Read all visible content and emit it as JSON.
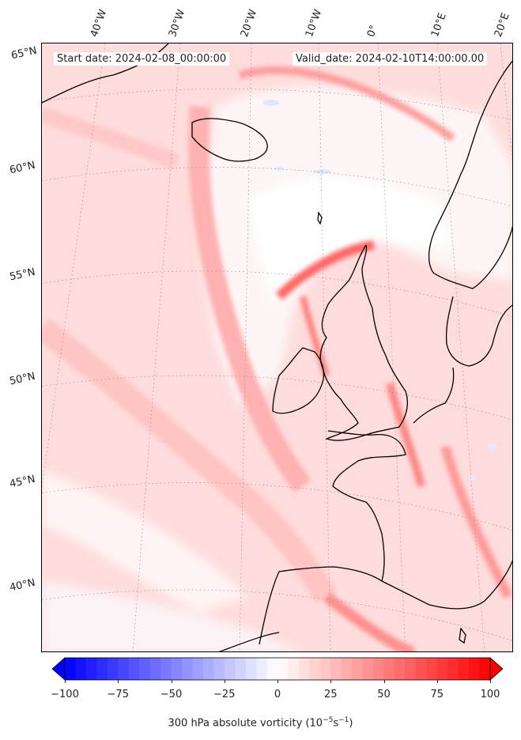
{
  "header": {
    "start_date": "Start date: 2024-02-08_00:00:00",
    "valid_date": "Valid_date: 2024-02-10T14:00:00.00"
  },
  "lon_labels": [
    "40°W",
    "30°W",
    "20°W",
    "10°W",
    "0°",
    "10°E",
    "20°E"
  ],
  "lat_labels": [
    "65°N",
    "60°N",
    "55°N",
    "50°N",
    "45°N",
    "40°N"
  ],
  "colorbar": {
    "ticks": [
      "−100",
      "−75",
      "−50",
      "−25",
      "0",
      "25",
      "50",
      "75",
      "100"
    ],
    "label": "300 hPa absolute vorticity (10",
    "label_exp1": "−5",
    "label_mid": "s",
    "label_exp2": "−1",
    "label_end": ")",
    "min": -100,
    "max": 100,
    "colors": {
      "negative_end": "#0000ff",
      "positive_end": "#ff0000",
      "center": "#ffffff"
    }
  },
  "colors": {
    "coastline": "#000000",
    "background_vorticity": "#ffd8d8",
    "strong_vorticity": "#ff7070",
    "weak_negative": "#eef0ff"
  }
}
